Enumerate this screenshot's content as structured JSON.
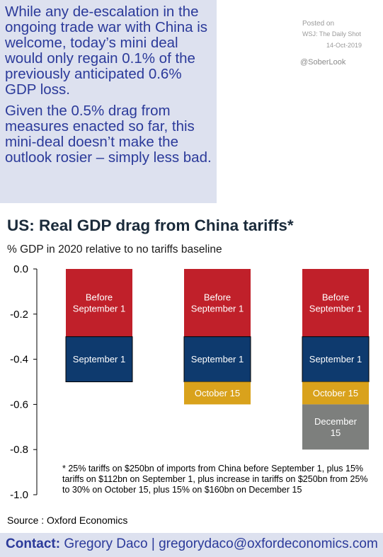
{
  "commentary": {
    "paragraphs": [
      "While any de-escalation in the ongoing trade war with China is welcome, today’s mini deal would only regain 0.1% of the previously anticipated 0.6% GDP loss.",
      "Given the 0.5% drag from measures enacted so far, this mini-deal doesn’t make the outlook rosier – simply less bad."
    ]
  },
  "posting": {
    "posted_on": "Posted on",
    "source": "WSJ: The Daily Shot",
    "date": "14-Oct-2019",
    "handle": "@SoberLook"
  },
  "chart_data": {
    "type": "bar",
    "stacked": true,
    "title": "US: Real GDP drag from China tariffs*",
    "subtitle": "% GDP in 2020 relative to no tariffs baseline",
    "ylim": [
      -1.0,
      0.0
    ],
    "yticks": [
      "0.0",
      "-0.2",
      "-0.4",
      "-0.6",
      "-0.8",
      "-1.0"
    ],
    "ytick_values": [
      0.0,
      -0.2,
      -0.4,
      -0.6,
      -0.8,
      -1.0
    ],
    "categories": [
      "",
      "",
      ""
    ],
    "colors": {
      "before_sep1": "#c0202a",
      "sep1": "#0e3a6e",
      "oct15": "#d9a21c",
      "dec15": "#7d7f7d"
    },
    "bars": [
      {
        "segments": [
          {
            "label": "Before\nSeptember 1",
            "value": -0.3,
            "color_key": "before_sep1"
          },
          {
            "label": "September 1",
            "value": -0.2,
            "color_key": "sep1"
          }
        ]
      },
      {
        "segments": [
          {
            "label": "Before\nSeptember 1",
            "value": -0.3,
            "color_key": "before_sep1"
          },
          {
            "label": "September 1",
            "value": -0.2,
            "color_key": "sep1"
          },
          {
            "label": "October 15",
            "value": -0.1,
            "color_key": "oct15"
          }
        ]
      },
      {
        "segments": [
          {
            "label": "Before\nSeptember 1",
            "value": -0.3,
            "color_key": "before_sep1"
          },
          {
            "label": "September 1",
            "value": -0.2,
            "color_key": "sep1"
          },
          {
            "label": "October 15",
            "value": -0.1,
            "color_key": "oct15"
          },
          {
            "label": "December\n15",
            "value": -0.2,
            "color_key": "dec15"
          }
        ]
      }
    ],
    "footnote": "* 25% tariffs on $250bn of imports from China before September 1, plus 15% tariffs on $112bn on September 1, plus increase in tariffs on $250bn from 25% to 30% on October 15, plus 15% on $160bn on December 15",
    "source": "Source : Oxford Economics"
  },
  "contact": {
    "label": "Contact:",
    "text": " Gregory Daco | gregorydaco@oxfordeconomics.com"
  }
}
